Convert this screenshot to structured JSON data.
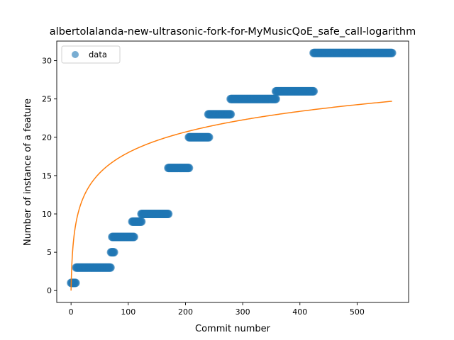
{
  "chart_data": {
    "type": "scatter",
    "title": "albertolalanda-new-ultrasonic-fork-for-MyMusicQoE_safe_call-logarithm",
    "xlabel": "Commit number",
    "ylabel": "Number of instance of a feature",
    "xlim": [
      -25,
      590
    ],
    "ylim": [
      -1.55,
      32.55
    ],
    "xticks": [
      0,
      100,
      200,
      300,
      400,
      500
    ],
    "yticks": [
      0,
      5,
      10,
      15,
      20,
      25,
      30
    ],
    "grid": false,
    "legend": {
      "placement": "top-left",
      "entries": [
        "data"
      ]
    },
    "series": [
      {
        "name": "data",
        "kind": "points",
        "color": "#1f77b4",
        "alpha": 0.6,
        "steps": [
          {
            "x_start": 0,
            "x_end": 8,
            "y": 1
          },
          {
            "x_start": 9,
            "x_end": 69,
            "y": 3
          },
          {
            "x_start": 70,
            "x_end": 75,
            "y": 5
          },
          {
            "x_start": 72,
            "x_end": 110,
            "y": 7
          },
          {
            "x_start": 107,
            "x_end": 123,
            "y": 9
          },
          {
            "x_start": 123,
            "x_end": 170,
            "y": 10
          },
          {
            "x_start": 170,
            "x_end": 206,
            "y": 16
          },
          {
            "x_start": 206,
            "x_end": 241,
            "y": 20
          },
          {
            "x_start": 240,
            "x_end": 279,
            "y": 23
          },
          {
            "x_start": 279,
            "x_end": 358,
            "y": 25
          },
          {
            "x_start": 358,
            "x_end": 424,
            "y": 26
          },
          {
            "x_start": 424,
            "x_end": 561,
            "y": 31
          }
        ]
      },
      {
        "kind": "fit-curve",
        "color": "#ff7f0e",
        "function": "logarithmic",
        "x_range": [
          0,
          561
        ],
        "y_at_end": 24.7
      }
    ]
  }
}
